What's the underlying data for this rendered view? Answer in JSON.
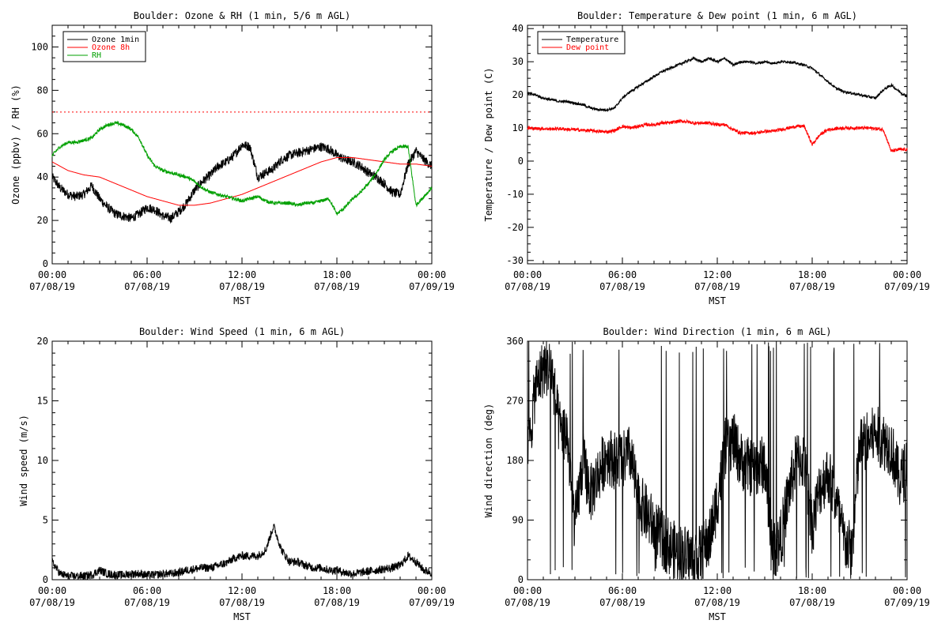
{
  "panels": [
    {
      "id": "ozone-rh",
      "title": "Boulder: Ozone & RH (1 min, 5/6 m AGL)",
      "ylabel": "Ozone (ppbv) / RH (%)",
      "xlabel": "MST",
      "legend": [
        "Ozone 1min",
        "Ozone 8h",
        "RH"
      ]
    },
    {
      "id": "temp-dew",
      "title": "Boulder: Temperature & Dew point (1 min, 6 m AGL)",
      "ylabel": "Temperature / Dew point (C)",
      "xlabel": "MST",
      "legend": [
        "Temperature",
        "Dew point"
      ]
    },
    {
      "id": "wind-speed",
      "title": "Boulder: Wind Speed (1 min, 6 m AGL)",
      "ylabel": "Wind speed (m/s)",
      "xlabel": "MST"
    },
    {
      "id": "wind-dir",
      "title": "Boulder: Wind Direction (1 min, 6 m AGL)",
      "ylabel": "Wind direction (deg)",
      "xlabel": "MST"
    }
  ],
  "chart_data": [
    {
      "type": "line",
      "title": "Boulder: Ozone & RH (1 min, 5/6 m AGL)",
      "xlabel": "MST",
      "ylabel": "Ozone (ppbv) / RH (%)",
      "xlim": [
        0,
        24
      ],
      "ylim": [
        0,
        110
      ],
      "xticks": [
        0,
        6,
        12,
        18,
        24
      ],
      "xtick_labels": [
        [
          "00:00",
          "07/08/19"
        ],
        [
          "06:00",
          "07/08/19"
        ],
        [
          "12:00",
          "07/08/19"
        ],
        [
          "18:00",
          "07/08/19"
        ],
        [
          "00:00",
          "07/09/19"
        ]
      ],
      "yticks": [
        0,
        20,
        40,
        60,
        80,
        100
      ],
      "ytick_labels": [
        "0",
        "20",
        "40",
        "60",
        "80",
        "100"
      ],
      "legend_position": "top-left",
      "reference_lines": [
        {
          "y": 70,
          "color": "#ff0000",
          "style": "dotted"
        }
      ],
      "series": [
        {
          "name": "Ozone 1min",
          "color": "#000000",
          "noise": 2.2,
          "x": [
            0,
            0.5,
            1,
            1.5,
            2,
            2.5,
            3,
            3.5,
            4,
            4.5,
            5,
            5.5,
            6,
            6.5,
            7,
            7.5,
            8,
            8.5,
            9,
            9.5,
            10,
            10.5,
            11,
            11.5,
            12,
            12.5,
            13,
            13.5,
            14,
            14.5,
            15,
            15.5,
            16,
            16.5,
            17,
            17.5,
            18,
            18.5,
            19,
            19.5,
            20,
            20.5,
            21,
            21.5,
            22,
            22.5,
            23,
            23.5,
            24
          ],
          "y": [
            40,
            35,
            32,
            31,
            32,
            36,
            30,
            26,
            23,
            22,
            21,
            23,
            26,
            25,
            22,
            21,
            24,
            28,
            34,
            38,
            41,
            45,
            47,
            50,
            55,
            54,
            40,
            42,
            44,
            48,
            50,
            51,
            52,
            53,
            54,
            53,
            50,
            48,
            47,
            45,
            42,
            40,
            37,
            33,
            32,
            46,
            52,
            48,
            45
          ]
        },
        {
          "name": "Ozone 8h",
          "color": "#ff0000",
          "noise": 0,
          "x": [
            0,
            1,
            2,
            3,
            4,
            5,
            6,
            7,
            8,
            9,
            10,
            11,
            12,
            13,
            14,
            15,
            16,
            17,
            18,
            19,
            20,
            21,
            22,
            23,
            24
          ],
          "y": [
            47,
            43,
            41,
            40,
            37,
            34,
            31,
            29,
            27,
            27,
            28,
            30,
            32,
            35,
            38,
            41,
            44,
            47,
            49,
            49,
            48,
            47,
            46,
            46,
            45
          ]
        },
        {
          "name": "RH",
          "color": "#00a000",
          "noise": 0.8,
          "x": [
            0,
            0.5,
            1,
            1.5,
            2,
            2.5,
            3,
            3.5,
            4,
            4.5,
            5,
            5.5,
            6,
            6.5,
            7,
            7.5,
            8,
            8.5,
            9,
            9.5,
            10,
            10.5,
            11,
            11.5,
            12,
            12.5,
            13,
            13.5,
            14,
            14.5,
            15,
            15.5,
            16,
            16.5,
            17,
            17.5,
            18,
            18.5,
            19,
            19.5,
            20,
            20.5,
            21,
            21.5,
            22,
            22.5,
            23,
            23.5,
            24
          ],
          "y": [
            50,
            54,
            56,
            56,
            57,
            58,
            62,
            64,
            65,
            64,
            62,
            58,
            50,
            45,
            43,
            42,
            41,
            40,
            38,
            35,
            33,
            32,
            31,
            30,
            29,
            30,
            31,
            29,
            28,
            28,
            28,
            27,
            28,
            28,
            29,
            30,
            23,
            26,
            30,
            33,
            37,
            42,
            48,
            52,
            54,
            54,
            27,
            31,
            35
          ]
        }
      ]
    },
    {
      "type": "line",
      "title": "Boulder: Temperature & Dew point (1 min, 6 m AGL)",
      "xlabel": "MST",
      "ylabel": "Temperature / Dew point (C)",
      "xlim": [
        0,
        24
      ],
      "ylim": [
        -31,
        41
      ],
      "xticks": [
        0,
        6,
        12,
        18,
        24
      ],
      "xtick_labels": [
        [
          "00:00",
          "07/08/19"
        ],
        [
          "06:00",
          "07/08/19"
        ],
        [
          "12:00",
          "07/08/19"
        ],
        [
          "18:00",
          "07/08/19"
        ],
        [
          "00:00",
          "07/09/19"
        ]
      ],
      "yticks": [
        -30,
        -20,
        -10,
        0,
        10,
        20,
        30,
        40
      ],
      "ytick_labels": [
        "-30",
        "-20",
        "-10",
        "0",
        "10",
        "20",
        "30",
        "40"
      ],
      "legend_position": "top-left",
      "series": [
        {
          "name": "Temperature",
          "color": "#000000",
          "noise": 0.4,
          "x": [
            0,
            0.5,
            1,
            1.5,
            2,
            2.5,
            3,
            3.5,
            4,
            4.5,
            5,
            5.5,
            6,
            6.5,
            7,
            7.5,
            8,
            8.5,
            9,
            9.5,
            10,
            10.5,
            11,
            11.5,
            12,
            12.5,
            13,
            13.5,
            14,
            14.5,
            15,
            15.5,
            16,
            16.5,
            17,
            17.5,
            18,
            18.5,
            19,
            19.5,
            20,
            20.5,
            21,
            21.5,
            22,
            22.5,
            23,
            23.5,
            24
          ],
          "y": [
            20.5,
            20,
            19,
            18.5,
            18,
            18,
            17.5,
            17,
            16,
            15.5,
            15.5,
            16,
            19,
            21,
            22.5,
            24,
            25.5,
            27,
            28,
            29,
            30,
            31,
            30,
            31,
            30,
            31,
            29,
            30,
            30,
            29.5,
            30,
            29.5,
            30,
            30,
            29.5,
            29,
            28,
            26,
            24,
            22,
            21,
            20.5,
            20,
            19.5,
            19,
            21.5,
            23,
            21,
            19.5
          ]
        },
        {
          "name": "Dew point",
          "color": "#ff0000",
          "noise": 0.5,
          "x": [
            0,
            0.5,
            1,
            1.5,
            2,
            2.5,
            3,
            3.5,
            4,
            4.5,
            5,
            5.5,
            6,
            6.5,
            7,
            7.5,
            8,
            8.5,
            9,
            9.5,
            10,
            10.5,
            11,
            11.5,
            12,
            12.5,
            13,
            13.5,
            14,
            14.5,
            15,
            15.5,
            16,
            16.5,
            17,
            17.5,
            18,
            18.5,
            19,
            19.5,
            20,
            20.5,
            21,
            21.5,
            22,
            22.5,
            23,
            23.5,
            24
          ],
          "y": [
            10,
            9.8,
            9.8,
            9.7,
            9.8,
            9.6,
            9.5,
            9.3,
            9.2,
            9,
            8.8,
            9.2,
            10.5,
            10,
            10.5,
            11,
            11,
            11.5,
            11.5,
            12,
            12,
            11.5,
            11.5,
            11.5,
            11,
            11,
            9.5,
            8.5,
            8.5,
            8.5,
            9,
            9,
            9.5,
            10,
            10.5,
            10.5,
            5,
            8,
            9.5,
            9.8,
            10,
            10,
            10,
            10,
            9.8,
            9.5,
            3,
            3.5,
            3.5
          ]
        }
      ]
    },
    {
      "type": "line",
      "title": "Boulder: Wind Speed (1 min, 6 m AGL)",
      "xlabel": "MST",
      "ylabel": "Wind speed (m/s)",
      "xlim": [
        0,
        24
      ],
      "ylim": [
        0,
        20
      ],
      "xticks": [
        0,
        6,
        12,
        18,
        24
      ],
      "xtick_labels": [
        [
          "00:00",
          "07/08/19"
        ],
        [
          "06:00",
          "07/08/19"
        ],
        [
          "12:00",
          "07/08/19"
        ],
        [
          "18:00",
          "07/08/19"
        ],
        [
          "00:00",
          "07/09/19"
        ]
      ],
      "yticks": [
        0,
        5,
        10,
        15,
        20
      ],
      "ytick_labels": [
        "0",
        "5",
        "10",
        "15",
        "20"
      ],
      "series": [
        {
          "name": "",
          "color": "#000000",
          "noise": 0.35,
          "x": [
            0,
            0.5,
            1,
            1.5,
            2,
            2.5,
            3,
            3.5,
            4,
            4.5,
            5,
            5.5,
            6,
            6.5,
            7,
            7.5,
            8,
            8.5,
            9,
            9.5,
            10,
            10.5,
            11,
            11.5,
            12,
            12.5,
            13,
            13.5,
            14,
            14.5,
            15,
            15.5,
            16,
            16.5,
            17,
            17.5,
            18,
            18.5,
            19,
            19.5,
            20,
            20.5,
            21,
            21.5,
            22,
            22.5,
            23,
            23.5,
            24
          ],
          "y": [
            1.5,
            0.5,
            0.3,
            0.3,
            0.3,
            0.4,
            0.8,
            0.5,
            0.4,
            0.4,
            0.5,
            0.5,
            0.4,
            0.4,
            0.5,
            0.5,
            0.6,
            0.8,
            0.9,
            1,
            1,
            1.2,
            1.4,
            1.8,
            2,
            2,
            2,
            2.5,
            4.5,
            2.5,
            1.5,
            1.5,
            1.2,
            1,
            1,
            0.8,
            0.8,
            0.6,
            0.5,
            0.6,
            0.7,
            0.8,
            0.9,
            1,
            1.2,
            2,
            1.5,
            0.8,
            0.6
          ]
        }
      ]
    },
    {
      "type": "line",
      "title": "Boulder: Wind Direction (1 min, 6 m AGL)",
      "xlabel": "MST",
      "ylabel": "Wind direction (deg)",
      "xlim": [
        0,
        24
      ],
      "ylim": [
        0,
        360
      ],
      "xticks": [
        0,
        6,
        12,
        18,
        24
      ],
      "xtick_labels": [
        [
          "00:00",
          "07/08/19"
        ],
        [
          "06:00",
          "07/08/19"
        ],
        [
          "12:00",
          "07/08/19"
        ],
        [
          "18:00",
          "07/08/19"
        ],
        [
          "00:00",
          "07/09/19"
        ]
      ],
      "yticks": [
        0,
        90,
        180,
        270,
        360
      ],
      "ytick_labels": [
        "0",
        "90",
        "180",
        "270",
        "360"
      ],
      "series": [
        {
          "name": "",
          "color": "#000000",
          "noise": 45,
          "x": [
            0,
            0.5,
            1,
            1.5,
            2,
            2.5,
            3,
            3.5,
            4,
            4.5,
            5,
            5.5,
            6,
            6.5,
            7,
            7.5,
            8,
            8.5,
            9,
            9.5,
            10,
            10.5,
            11,
            11.5,
            12,
            12.5,
            13,
            13.5,
            14,
            14.5,
            15,
            15.5,
            16,
            16.5,
            17,
            17.5,
            18,
            18.5,
            19,
            19.5,
            20,
            20.5,
            21,
            21.5,
            22,
            22.5,
            23,
            23.5,
            24
          ],
          "y": [
            180,
            290,
            320,
            320,
            230,
            220,
            80,
            180,
            130,
            160,
            190,
            180,
            180,
            190,
            120,
            100,
            80,
            60,
            50,
            40,
            40,
            30,
            40,
            60,
            120,
            200,
            210,
            180,
            170,
            170,
            175,
            40,
            60,
            130,
            180,
            180,
            80,
            140,
            160,
            120,
            60,
            40,
            200,
            210,
            220,
            210,
            200,
            150,
            170
          ]
        }
      ]
    }
  ]
}
